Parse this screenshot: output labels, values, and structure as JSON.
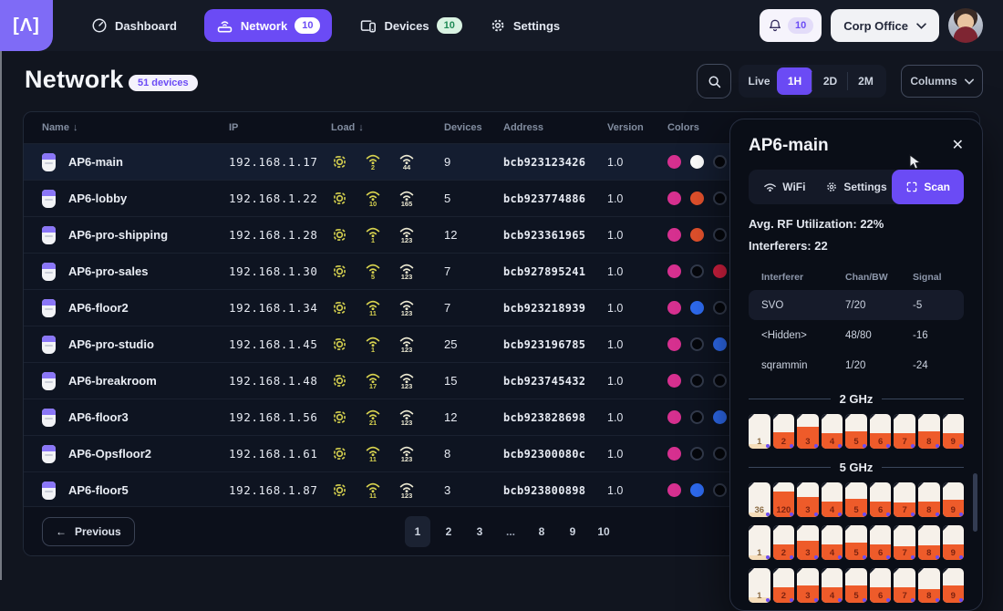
{
  "topbar": {
    "logo": "[Λ]",
    "nav": [
      {
        "label": "Dashboard",
        "badge": ""
      },
      {
        "label": "Network",
        "badge": "10"
      },
      {
        "label": "Devices",
        "badge": "10"
      },
      {
        "label": "Settings",
        "badge": ""
      }
    ],
    "notifications": "10",
    "org": "Corp Office"
  },
  "header": {
    "title": "Network",
    "count_badge": "51 devices",
    "ranges": [
      "Live",
      "1H",
      "2D",
      "2M"
    ],
    "active_range": "1H",
    "columns_label": "Columns"
  },
  "table": {
    "headers": {
      "name": "Name",
      "ip": "IP",
      "load": "Load",
      "devices": "Devices",
      "address": "Address",
      "version": "Version",
      "colors": "Colors"
    },
    "rows": [
      {
        "name": "AP6-main",
        "ip": "192.168.1.17",
        "wifi_a": "2",
        "wifi_b": "44",
        "devices": "9",
        "address": "bcb923123426",
        "version": "1.0",
        "colors": [
          "pink",
          "white",
          "black"
        ],
        "selected": true
      },
      {
        "name": "AP6-lobby",
        "ip": "192.168.1.22",
        "wifi_a": "10",
        "wifi_b": "165",
        "devices": "5",
        "address": "bcb923774886",
        "version": "1.0",
        "colors": [
          "pink",
          "orange",
          "black"
        ]
      },
      {
        "name": "AP6-pro-shipping",
        "ip": "192.168.1.28",
        "wifi_a": "1",
        "wifi_b": "123",
        "devices": "12",
        "address": "bcb923361965",
        "version": "1.0",
        "colors": [
          "pink",
          "orange",
          "black"
        ]
      },
      {
        "name": "AP6-pro-sales",
        "ip": "192.168.1.30",
        "wifi_a": "5",
        "wifi_b": "123",
        "devices": "7",
        "address": "bcb927895241",
        "version": "1.0",
        "colors": [
          "pink",
          "black",
          "red",
          "black"
        ]
      },
      {
        "name": "AP6-floor2",
        "ip": "192.168.1.34",
        "wifi_a": "11",
        "wifi_b": "123",
        "devices": "7",
        "address": "bcb923218939",
        "version": "1.0",
        "colors": [
          "pink",
          "blue",
          "black"
        ]
      },
      {
        "name": "AP6-pro-studio",
        "ip": "192.168.1.45",
        "wifi_a": "1",
        "wifi_b": "123",
        "devices": "25",
        "address": "bcb923196785",
        "version": "1.0",
        "colors": [
          "pink",
          "black",
          "blue",
          "black"
        ]
      },
      {
        "name": "AP6-breakroom",
        "ip": "192.168.1.48",
        "wifi_a": "17",
        "wifi_b": "123",
        "devices": "15",
        "address": "bcb923745432",
        "version": "1.0",
        "colors": [
          "pink",
          "black",
          "black"
        ]
      },
      {
        "name": "AP6-floor3",
        "ip": "192.168.1.56",
        "wifi_a": "21",
        "wifi_b": "123",
        "devices": "12",
        "address": "bcb923828698",
        "version": "1.0",
        "colors": [
          "pink",
          "black",
          "blue",
          "black"
        ]
      },
      {
        "name": "AP6-Opsfloor2",
        "ip": "192.168.1.61",
        "wifi_a": "11",
        "wifi_b": "123",
        "devices": "8",
        "address": "bcb92300080c",
        "version": "1.0",
        "colors": [
          "pink",
          "black",
          "black",
          "black"
        ]
      },
      {
        "name": "AP6-floor5",
        "ip": "192.168.1.87",
        "wifi_a": "11",
        "wifi_b": "123",
        "devices": "3",
        "address": "bcb923800898",
        "version": "1.0",
        "colors": [
          "pink",
          "blue",
          "black"
        ]
      }
    ]
  },
  "pagination": {
    "previous": "Previous",
    "pages": [
      "1",
      "2",
      "3",
      "...",
      "8",
      "9",
      "10"
    ],
    "active": "1"
  },
  "panel": {
    "title": "AP6-main",
    "tabs": [
      "WiFi",
      "Settings",
      "Scan"
    ],
    "active_tab": "Scan",
    "rf_utilization_label": "Avg. RF Utilization:",
    "rf_utilization_value": "22%",
    "interferers_label": "Interferers:",
    "interferers_value": "22",
    "interferer_table": {
      "headers": [
        "Interferer",
        "Chan/BW",
        "Signal"
      ],
      "rows": [
        [
          "SVO",
          "7/20",
          "-5"
        ],
        [
          "<Hidden>",
          "48/80",
          "-16"
        ],
        [
          "sqrammin",
          "1/20",
          "-24"
        ]
      ]
    },
    "bands": [
      {
        "label": "2 GHz",
        "rows": [
          [
            [
              "1",
              14
            ],
            [
              "2",
              48
            ],
            [
              "3",
              62
            ],
            [
              "4",
              46
            ],
            [
              "5",
              50
            ],
            [
              "6",
              46
            ],
            [
              "7",
              46
            ],
            [
              "8",
              50
            ],
            [
              "9",
              46
            ]
          ]
        ]
      },
      {
        "label": "5 GHz",
        "rows": [
          [
            [
              "36",
              12
            ],
            [
              "120",
              75
            ],
            [
              "3",
              58
            ],
            [
              "4",
              46
            ],
            [
              "5",
              52
            ],
            [
              "6",
              46
            ],
            [
              "7",
              42
            ],
            [
              "8",
              46
            ],
            [
              "9",
              50
            ]
          ],
          [
            [
              "1",
              12
            ],
            [
              "2",
              44
            ],
            [
              "3",
              54
            ],
            [
              "4",
              46
            ],
            [
              "5",
              50
            ],
            [
              "6",
              46
            ],
            [
              "7",
              40
            ],
            [
              "8",
              42
            ],
            [
              "9",
              46
            ]
          ],
          [
            [
              "1",
              16
            ],
            [
              "2",
              46
            ],
            [
              "3",
              50
            ],
            [
              "4",
              46
            ],
            [
              "5",
              50
            ],
            [
              "6",
              46
            ],
            [
              "7",
              44
            ],
            [
              "8",
              40
            ],
            [
              "9",
              50
            ]
          ]
        ]
      }
    ]
  },
  "colors": {
    "accent": "#6b4bf5",
    "pink": "#d6308f",
    "white": "#ffffff",
    "black": "#05070c",
    "orange": "#e2512c",
    "red": "#d42040",
    "blue": "#2e6bf0",
    "yellow": "#d8d34f",
    "wifi_b": "#ece9d2",
    "channel_fill": "#ee5b2a"
  }
}
